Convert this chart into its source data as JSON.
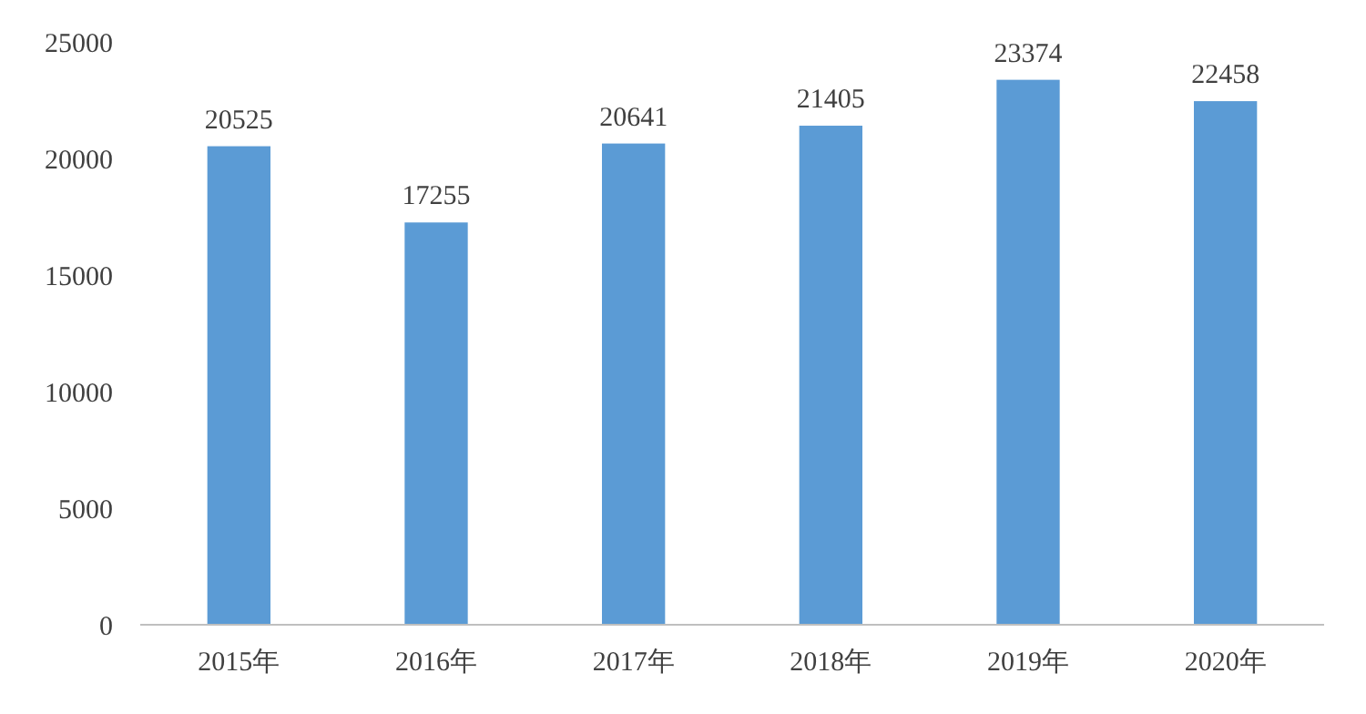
{
  "chart_data": {
    "type": "bar",
    "categories": [
      "2015年",
      "2016年",
      "2017年",
      "2018年",
      "2019年",
      "2020年"
    ],
    "values": [
      20525,
      17255,
      20641,
      21405,
      23374,
      22458
    ],
    "color": "#5b9bd5",
    "ylim": [
      0,
      25000
    ],
    "yticks": [
      0,
      5000,
      10000,
      15000,
      20000,
      25000
    ],
    "grid": false,
    "data_labels": true
  }
}
